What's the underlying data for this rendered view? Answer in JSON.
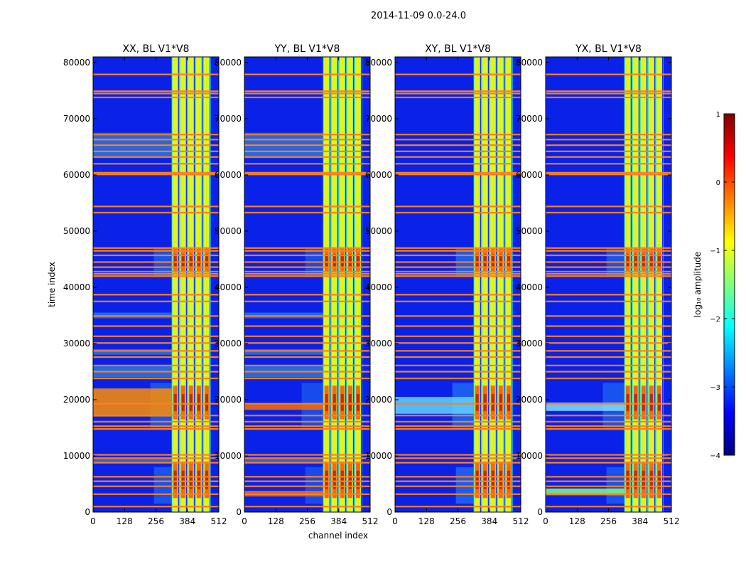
{
  "chart_data": {
    "type": "heatmap",
    "title": "2014-11-09 0.0-24.0",
    "xlabel": "channel index",
    "ylabel": "time index",
    "xlim": [
      0,
      512
    ],
    "ylim": [
      0,
      81000
    ],
    "x_ticks": [
      "0",
      "128",
      "256",
      "384",
      "512"
    ],
    "y_ticks": [
      "0",
      "10000",
      "20000",
      "30000",
      "40000",
      "50000",
      "60000",
      "70000",
      "80000"
    ],
    "x_tick_values": [
      0,
      128,
      256,
      384,
      512
    ],
    "y_tick_values": [
      0,
      10000,
      20000,
      30000,
      40000,
      50000,
      60000,
      70000,
      80000
    ],
    "colorscale": "jet",
    "panels": [
      {
        "name": "XX",
        "title": "XX, BL V1*V8"
      },
      {
        "name": "YY",
        "title": "YY, BL V1*V8"
      },
      {
        "name": "XY",
        "title": "XY, BL V1*V8"
      },
      {
        "name": "YX",
        "title": "YX, BL V1*V8"
      }
    ],
    "bright_channel_band": [
      320,
      480
    ],
    "flagged_rows_orange": [
      1000,
      3200,
      4600,
      5500,
      6300,
      8800,
      9600,
      10200,
      14800,
      15300,
      16100,
      17200,
      19300,
      23800,
      25000,
      26100,
      27600,
      28700,
      30100,
      31300,
      33100,
      34900,
      37500,
      38700,
      42000,
      42400,
      42800,
      43600,
      44500,
      45700,
      46500,
      47000,
      53300,
      54400,
      60100,
      60400,
      62000,
      63200,
      64200,
      65300,
      66300,
      67200,
      73800,
      74500,
      74900,
      77900
    ],
    "colorbar": {
      "label": "log₁₀ amplitude",
      "range": [
        -4,
        1
      ],
      "ticks": [
        "1",
        "0",
        "−1",
        "−2",
        "−3",
        "−4"
      ],
      "tick_values": [
        1,
        0,
        -1,
        -2,
        -3,
        -4
      ],
      "colors": [
        "#00007f",
        "#0000ff",
        "#007fff",
        "#00ffff",
        "#7fff7f",
        "#ffff00",
        "#ff7f00",
        "#ff0000",
        "#7f0000"
      ]
    }
  }
}
